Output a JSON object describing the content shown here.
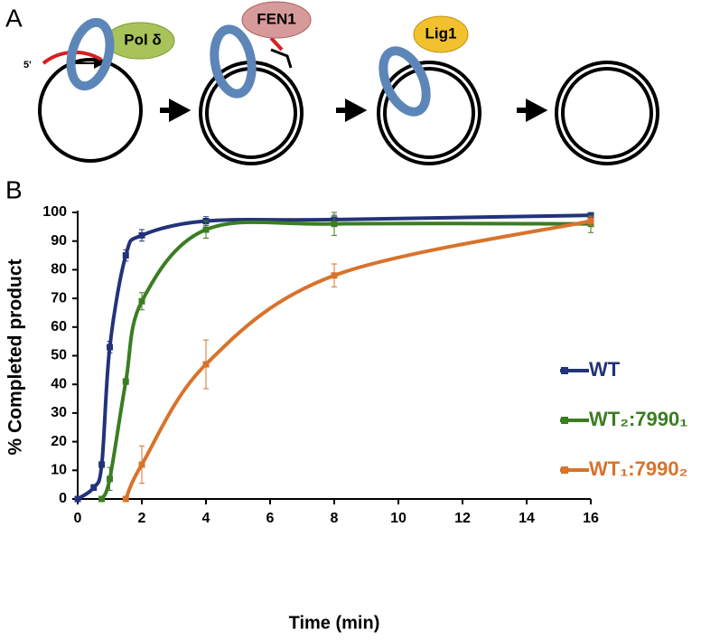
{
  "panel_labels": [
    "A",
    "B"
  ],
  "diagram": {
    "five_prime": "5'",
    "pol": "Pol δ",
    "fen": "FEN1",
    "lig": "Lig1"
  },
  "chart_data": {
    "type": "line",
    "xlabel": "Time (min)",
    "ylabel": "% Completed product",
    "xlim": [
      0,
      16
    ],
    "xticks": [
      0,
      2,
      4,
      6,
      8,
      10,
      12,
      14,
      16
    ],
    "ylim": [
      0,
      100
    ],
    "yticks": [
      0,
      10,
      20,
      30,
      40,
      50,
      60,
      70,
      80,
      90,
      100
    ],
    "grid": false,
    "legend": "right",
    "series": [
      {
        "name": "WT",
        "color": "#22337a",
        "x": [
          0,
          0.5,
          0.75,
          1,
          1.5,
          2,
          4,
          8,
          16
        ],
        "values": [
          0,
          4,
          12,
          53,
          85,
          92,
          97,
          97.5,
          99
        ],
        "errors": [
          0,
          1,
          1,
          2,
          2,
          2,
          1.5,
          1.5,
          0.5
        ]
      },
      {
        "name": "WT₂:7990₁",
        "color": "#3b7d23",
        "x": [
          0.75,
          1,
          1.5,
          2,
          4,
          8,
          16
        ],
        "values": [
          0,
          7,
          41,
          69,
          94,
          96,
          96
        ],
        "errors": [
          0,
          4,
          1,
          3,
          3,
          4,
          3
        ]
      },
      {
        "name": "WT₁:7990₂",
        "color": "#d8732b",
        "x": [
          1.5,
          2,
          4,
          8,
          16
        ],
        "values": [
          0,
          12,
          47,
          78,
          97
        ],
        "errors": [
          0,
          6.5,
          8.5,
          4,
          1.5
        ]
      }
    ]
  }
}
